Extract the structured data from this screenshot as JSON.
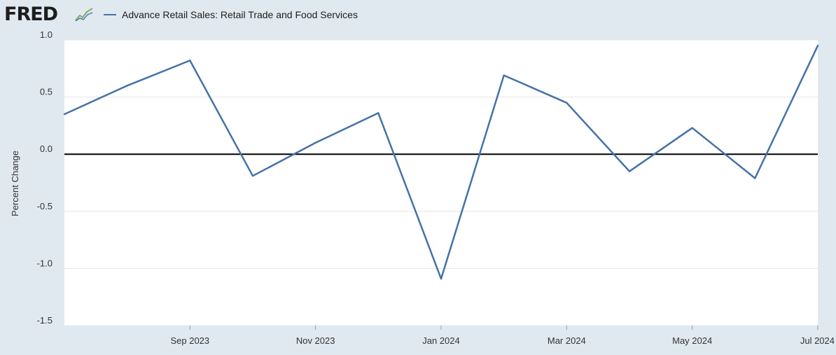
{
  "brand": {
    "logo_text": "FRED",
    "logo_icon": "trend-line-icon"
  },
  "colors": {
    "line": "#4572a7",
    "zero_line": "#000000",
    "plot_bg": "#ffffff",
    "page_bg": "#e1e9f0",
    "grid": "#e6e6e6"
  },
  "chart_data": {
    "type": "line",
    "title": "",
    "xlabel": "",
    "ylabel": "Percent Change",
    "ylim": [
      -1.5,
      1.0
    ],
    "y_ticks": [
      1.0,
      0.5,
      0.0,
      -0.5,
      -1.0,
      -1.5
    ],
    "y_tick_labels": [
      "1.0",
      "0.5",
      "0.0",
      "-0.5",
      "-1.0",
      "-1.5"
    ],
    "x": [
      "2023-07",
      "2023-08",
      "2023-09",
      "2023-10",
      "2023-11",
      "2023-12",
      "2024-01",
      "2024-02",
      "2024-03",
      "2024-04",
      "2024-05",
      "2024-06",
      "2024-07"
    ],
    "x_ticks": [
      "Sep 2023",
      "Nov 2023",
      "Jan 2024",
      "Mar 2024",
      "May 2024",
      "Jul 2024"
    ],
    "x_tick_indices": [
      2,
      4,
      6,
      8,
      10,
      12
    ],
    "reference_line": 0.0,
    "series": [
      {
        "name": "Advance Retail Sales: Retail Trade and Food Services",
        "values": [
          0.35,
          0.6,
          0.82,
          -0.19,
          0.1,
          0.36,
          -1.09,
          0.69,
          0.45,
          -0.15,
          0.23,
          -0.21,
          0.95
        ]
      }
    ]
  }
}
